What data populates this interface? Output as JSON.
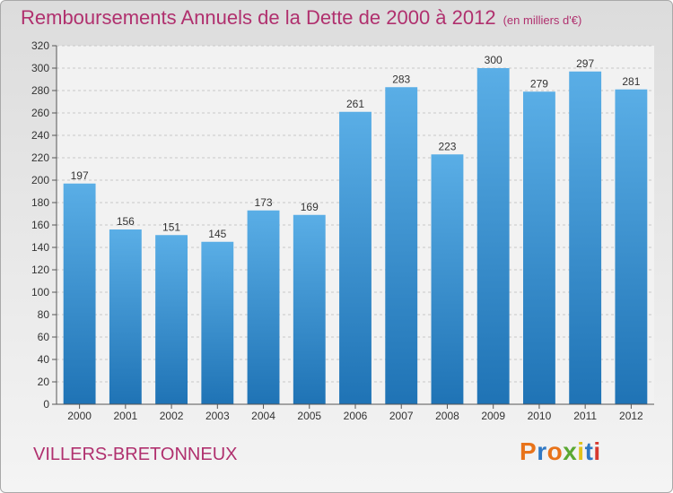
{
  "title": "Remboursements Annuels de la Dette de 2000 à 2012",
  "subtitle": "(en milliers d'€)",
  "location": "VILLERS-BRETONNEUX",
  "logo": {
    "text": "Proxiti",
    "colors": [
      "#e8731a",
      "#2f78c4",
      "#e8731a",
      "#5aa832",
      "#e0c21c",
      "#2f78c4",
      "#d7392e"
    ]
  },
  "colors": {
    "title": "#b0306e",
    "bar_light": "#5aaee6",
    "bar_dark": "#1f73b5",
    "axis": "#555555",
    "grid": "#c8c8c8"
  },
  "chart_data": {
    "type": "bar",
    "categories": [
      "2000",
      "2001",
      "2002",
      "2003",
      "2004",
      "2005",
      "2006",
      "2007",
      "2008",
      "2009",
      "2010",
      "2011",
      "2012"
    ],
    "values": [
      197,
      156,
      151,
      145,
      173,
      169,
      261,
      283,
      223,
      300,
      279,
      297,
      281
    ],
    "ylim": [
      0,
      320
    ],
    "yticks": [
      0,
      20,
      40,
      60,
      80,
      100,
      120,
      140,
      160,
      180,
      200,
      220,
      240,
      260,
      280,
      300,
      320
    ],
    "grid": true,
    "xlabel": "",
    "ylabel": ""
  }
}
